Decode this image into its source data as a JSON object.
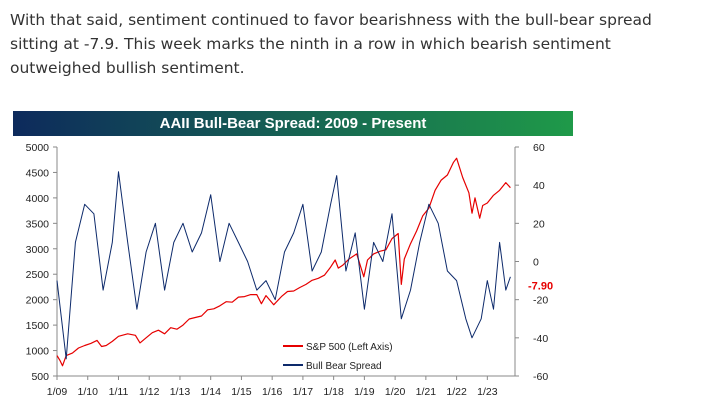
{
  "intro_text": "With that said, sentiment continued to favor bearishness with the bull-bear spread sitting at -7.9.  This week marks the ninth in a row in which bearish sentiment outweighed bullish sentiment.",
  "chart_data": {
    "type": "line",
    "title": "AAII Bull-Bear Spread: 2009 - Present",
    "title_gradient": [
      "#0d2a5c",
      "#1f9a49"
    ],
    "x_tick_labels": [
      "1/09",
      "1/10",
      "1/11",
      "1/12",
      "1/13",
      "1/14",
      "1/15",
      "1/16",
      "1/17",
      "1/18",
      "1/19",
      "1/20",
      "1/21",
      "1/22",
      "1/23"
    ],
    "x_range": [
      2009.0,
      2023.9
    ],
    "y_left": {
      "label": "",
      "lim": [
        500,
        5000
      ],
      "ticks": [
        500,
        1000,
        1500,
        2000,
        2500,
        3000,
        3500,
        4000,
        4500,
        5000
      ]
    },
    "y_right": {
      "label": "",
      "lim": [
        -60,
        60
      ],
      "ticks": [
        -60,
        -40,
        -20,
        0,
        20,
        40,
        60
      ],
      "tick_labels": [
        "-60",
        "-40",
        "-20",
        "0",
        "20",
        "40",
        "60"
      ]
    },
    "last_value_label": "-7.90",
    "last_value_color": "#e60000",
    "legend_position": "bottom-center",
    "grid": false,
    "series": [
      {
        "name": "S&P 500 (Left Axis)",
        "axis": "left",
        "color": "#e60000",
        "x": [
          2009.0,
          2009.1,
          2009.18,
          2009.3,
          2009.5,
          2009.7,
          2009.9,
          2010.1,
          2010.3,
          2010.45,
          2010.6,
          2010.8,
          2011.0,
          2011.3,
          2011.55,
          2011.7,
          2011.9,
          2012.1,
          2012.3,
          2012.5,
          2012.7,
          2012.9,
          2013.1,
          2013.3,
          2013.5,
          2013.7,
          2013.9,
          2014.1,
          2014.3,
          2014.5,
          2014.7,
          2014.9,
          2015.1,
          2015.3,
          2015.5,
          2015.65,
          2015.8,
          2016.05,
          2016.3,
          2016.5,
          2016.7,
          2016.9,
          2017.1,
          2017.3,
          2017.5,
          2017.7,
          2017.9,
          2018.05,
          2018.15,
          2018.3,
          2018.5,
          2018.75,
          2018.98,
          2019.1,
          2019.3,
          2019.5,
          2019.7,
          2019.9,
          2020.1,
          2020.2,
          2020.3,
          2020.5,
          2020.7,
          2020.9,
          2021.1,
          2021.3,
          2021.5,
          2021.7,
          2021.9,
          2022.0,
          2022.2,
          2022.4,
          2022.5,
          2022.6,
          2022.75,
          2022.85,
          2023.0,
          2023.2,
          2023.4,
          2023.6,
          2023.75
        ],
        "y": [
          900,
          800,
          700,
          900,
          950,
          1050,
          1100,
          1140,
          1200,
          1080,
          1100,
          1180,
          1280,
          1330,
          1300,
          1150,
          1250,
          1350,
          1400,
          1330,
          1450,
          1420,
          1500,
          1620,
          1650,
          1680,
          1800,
          1820,
          1880,
          1960,
          1950,
          2050,
          2060,
          2100,
          2100,
          1920,
          2080,
          1900,
          2060,
          2160,
          2170,
          2240,
          2300,
          2380,
          2420,
          2480,
          2640,
          2780,
          2620,
          2680,
          2800,
          2900,
          2450,
          2780,
          2900,
          2950,
          2980,
          3200,
          3300,
          2300,
          2800,
          3100,
          3350,
          3650,
          3800,
          4150,
          4350,
          4450,
          4700,
          4780,
          4400,
          4100,
          3700,
          4000,
          3600,
          3850,
          3900,
          4050,
          4150,
          4300,
          4200
        ]
      },
      {
        "name": "Bull Bear Spread",
        "axis": "right",
        "color": "#0d2a6b",
        "x": [
          2009.0,
          2009.3,
          2009.6,
          2009.9,
          2010.2,
          2010.5,
          2010.8,
          2011.0,
          2011.3,
          2011.6,
          2011.9,
          2012.2,
          2012.5,
          2012.8,
          2013.1,
          2013.4,
          2013.7,
          2014.0,
          2014.3,
          2014.6,
          2014.9,
          2015.2,
          2015.5,
          2015.8,
          2016.1,
          2016.4,
          2016.7,
          2017.0,
          2017.3,
          2017.6,
          2017.9,
          2018.1,
          2018.4,
          2018.7,
          2019.0,
          2019.3,
          2019.6,
          2019.9,
          2020.2,
          2020.5,
          2020.8,
          2021.1,
          2021.4,
          2021.7,
          2022.0,
          2022.3,
          2022.5,
          2022.8,
          2023.0,
          2023.2,
          2023.4,
          2023.6,
          2023.75
        ],
        "y": [
          -10,
          -51,
          10,
          30,
          25,
          -15,
          10,
          47,
          10,
          -25,
          5,
          20,
          -15,
          10,
          20,
          5,
          15,
          35,
          0,
          20,
          10,
          0,
          -15,
          -10,
          -20,
          5,
          15,
          30,
          -5,
          5,
          30,
          45,
          -5,
          15,
          -25,
          10,
          0,
          25,
          -30,
          -15,
          10,
          30,
          20,
          -5,
          -10,
          -30,
          -40,
          -30,
          -10,
          -25,
          10,
          -15,
          -8
        ]
      }
    ]
  }
}
